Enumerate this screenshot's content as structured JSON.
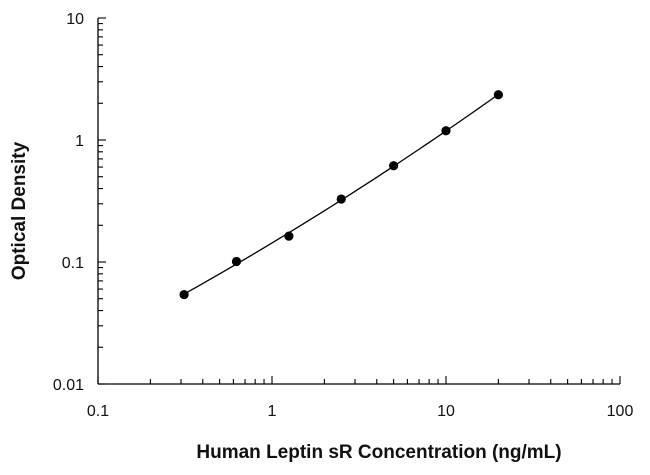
{
  "chart_data": {
    "type": "scatter",
    "title": "",
    "xlabel": "Human Leptin sR Concentration (ng/mL)",
    "ylabel": "Optical Density",
    "xscale": "log",
    "yscale": "log",
    "xlim": [
      0.1,
      100
    ],
    "ylim": [
      0.01,
      10
    ],
    "grid": false,
    "legend": "none",
    "x_ticks": [
      "0.1",
      "1",
      "10",
      "100"
    ],
    "y_ticks": [
      "0.01",
      "0.1",
      "1",
      "10"
    ],
    "series": [
      {
        "x": [
          0.3125,
          0.625,
          1.25,
          2.5,
          5,
          10,
          20
        ],
        "y": [
          0.054,
          0.101,
          0.163,
          0.328,
          0.615,
          1.19,
          2.35
        ],
        "marker": "circle",
        "fit_line": true
      }
    ],
    "colors": {
      "marker": "#000000",
      "line": "#000000",
      "axis": "#000000"
    }
  }
}
